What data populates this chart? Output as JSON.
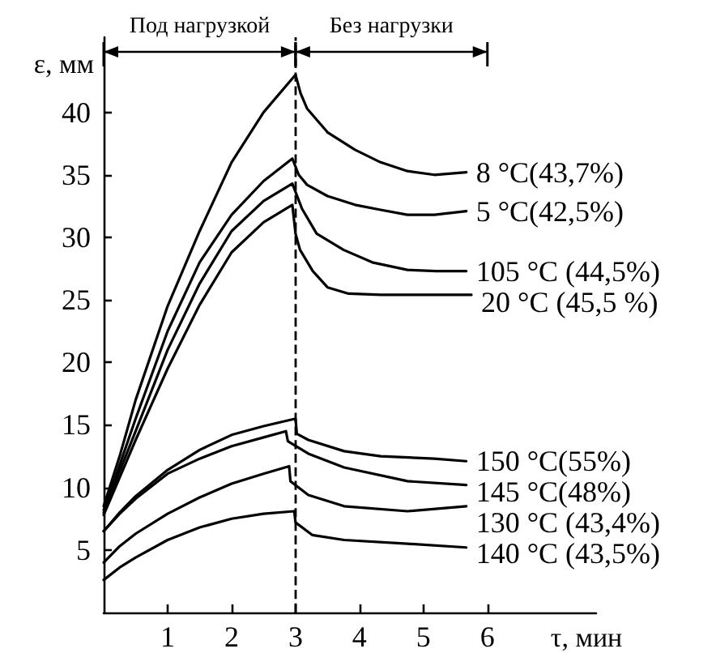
{
  "chart_data": {
    "type": "line",
    "xlabel": "τ, мин",
    "ylabel": "ε, мм",
    "xlim": [
      0,
      7.7
    ],
    "xticks": [
      1,
      2,
      3,
      4,
      5,
      6
    ],
    "ylim": [
      0,
      46
    ],
    "yticks": [
      5,
      10,
      15,
      20,
      25,
      30,
      35,
      40
    ],
    "grid": false,
    "legend": false,
    "marker": "none",
    "line_style": "solid",
    "annotations": [
      "Под нагрузкой",
      "Без нагрузки"
    ],
    "ref_lines": [
      {
        "axis": "x",
        "value": 3,
        "color": "#000000",
        "line_style": "dashed"
      }
    ],
    "series": [
      {
        "name": "8 °C(43,7%)",
        "color": "#000000",
        "x": [
          0,
          0.25,
          0.5,
          1,
          1.5,
          2,
          2.5,
          3,
          3.08,
          3.18,
          3.5,
          3.93,
          4.33,
          4.75,
          5.17,
          5.67
        ],
        "values": [
          8.5,
          12.5,
          17,
          24.5,
          30.5,
          36,
          40,
          43,
          41.5,
          40.3,
          38.4,
          37,
          36,
          35.3,
          35,
          35.2
        ]
      },
      {
        "name": "5 °C(42,5%)",
        "color": "#000000",
        "x": [
          0,
          0.25,
          0.5,
          1,
          1.5,
          2,
          2.5,
          2.95,
          3.05,
          3.18,
          3.5,
          3.93,
          4.33,
          4.75,
          5.17,
          5.67
        ],
        "values": [
          8.2,
          11.8,
          15.5,
          22.5,
          28,
          31.8,
          34.5,
          36.3,
          35,
          34.2,
          33.3,
          32.6,
          32.2,
          31.8,
          31.8,
          32.1
        ]
      },
      {
        "name": "105 °C (44,5%)",
        "color": "#000000",
        "x": [
          0,
          0.25,
          0.5,
          1,
          1.5,
          2,
          2.5,
          2.95,
          3.1,
          3.33,
          3.75,
          4.2,
          4.75,
          5.2,
          5.67
        ],
        "values": [
          8,
          11.3,
          14.5,
          21,
          26.3,
          30.5,
          32.9,
          34.3,
          32.3,
          30.3,
          29,
          28,
          27.4,
          27.3,
          27.3
        ]
      },
      {
        "name": "20 °C (45,5 %)",
        "color": "#000000",
        "x": [
          0,
          0.25,
          0.5,
          1,
          1.5,
          2,
          2.5,
          2.95,
          3,
          3.07,
          3.27,
          3.5,
          3.83,
          4.33,
          5.75
        ],
        "values": [
          7.8,
          10.8,
          13.8,
          19.5,
          24.6,
          28.8,
          31.2,
          32.6,
          30.3,
          29,
          27.3,
          26,
          25.5,
          25.4,
          25.4
        ]
      },
      {
        "name": "150 °C(55%)",
        "color": "#000000",
        "x": [
          0,
          0.25,
          0.5,
          1,
          1.5,
          2,
          2.5,
          3,
          3.02,
          3.2,
          3.76,
          4.33,
          5.17,
          5.67
        ],
        "values": [
          6.5,
          8,
          9.3,
          11.4,
          13,
          14.2,
          14.9,
          15.5,
          14.3,
          13.8,
          12.9,
          12.5,
          12.3,
          12.1
        ]
      },
      {
        "name": "145 °C(48%)",
        "color": "#000000",
        "x": [
          0,
          0.25,
          0.5,
          1,
          1.5,
          2,
          2.5,
          2.85,
          2.88,
          3.2,
          3.76,
          4.75,
          5.67
        ],
        "values": [
          6.5,
          7.9,
          9.1,
          11.1,
          12.3,
          13.3,
          14,
          14.5,
          13.7,
          12.7,
          11.6,
          10.5,
          10.2
        ]
      },
      {
        "name": "130 °C (43,4%)",
        "color": "#000000",
        "x": [
          0,
          0.25,
          0.5,
          1,
          1.5,
          2,
          2.5,
          2.9,
          2.92,
          3.2,
          3.76,
          4.75,
          5.67
        ],
        "values": [
          4,
          5.3,
          6.3,
          7.9,
          9.2,
          10.3,
          11.1,
          11.7,
          10.5,
          9.4,
          8.5,
          8.1,
          8.5
        ]
      },
      {
        "name": "140 °C (43,5%)",
        "color": "#000000",
        "x": [
          0,
          0.25,
          0.5,
          1,
          1.5,
          2,
          2.5,
          2.98,
          3,
          3.26,
          3.76,
          4.75,
          5.67
        ],
        "values": [
          2.6,
          3.6,
          4.4,
          5.8,
          6.8,
          7.5,
          7.9,
          8.1,
          7.2,
          6.2,
          5.8,
          5.5,
          5.2
        ]
      }
    ]
  }
}
